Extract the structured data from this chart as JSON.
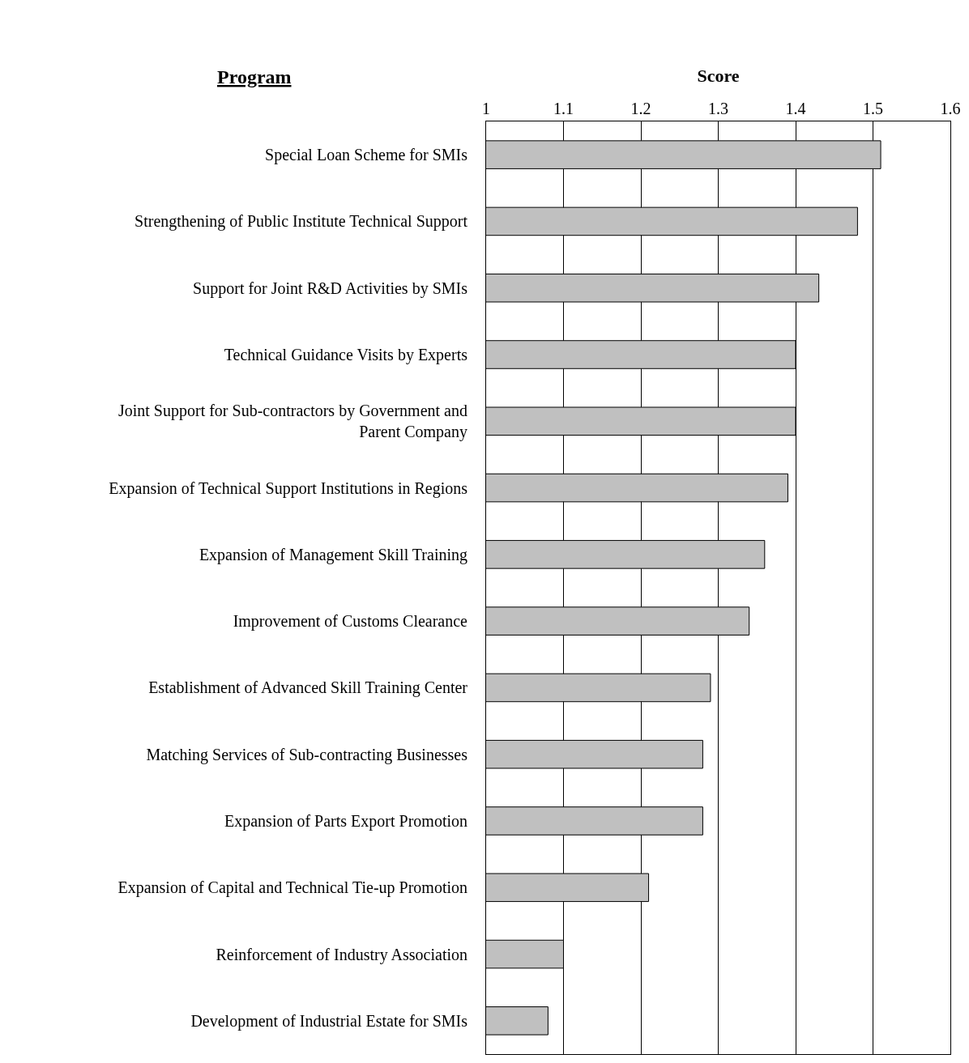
{
  "chart_data": {
    "type": "bar",
    "orientation": "horizontal",
    "xlabel": "Score",
    "ylabel": "Program",
    "categories": [
      "Special Loan Scheme for SMIs",
      "Strengthening of Public Institute Technical Support",
      "Support for Joint R&D Activities by SMIs",
      "Technical Guidance Visits by Experts",
      "Joint Support for Sub-contractors by Government and Parent Company",
      "Expansion of Technical Support Institutions in Regions",
      "Expansion of Management Skill Training",
      "Improvement of Customs Clearance",
      "Establishment of Advanced Skill Training Center",
      "Matching Services of Sub-contracting Businesses",
      "Expansion of Parts Export Promotion",
      "Expansion of Capital and Technical Tie-up Promotion",
      "Reinforcement of Industry Association",
      "Development of Industrial Estate for SMIs"
    ],
    "values": [
      1.51,
      1.48,
      1.43,
      1.4,
      1.4,
      1.39,
      1.36,
      1.34,
      1.29,
      1.28,
      1.28,
      1.21,
      1.1,
      1.08
    ],
    "color": "#c0c0c0",
    "xlim": [
      1,
      1.6
    ],
    "xticks": [
      1,
      1.1,
      1.2,
      1.3,
      1.4,
      1.5,
      1.6
    ],
    "grid": "x",
    "legend": false
  }
}
